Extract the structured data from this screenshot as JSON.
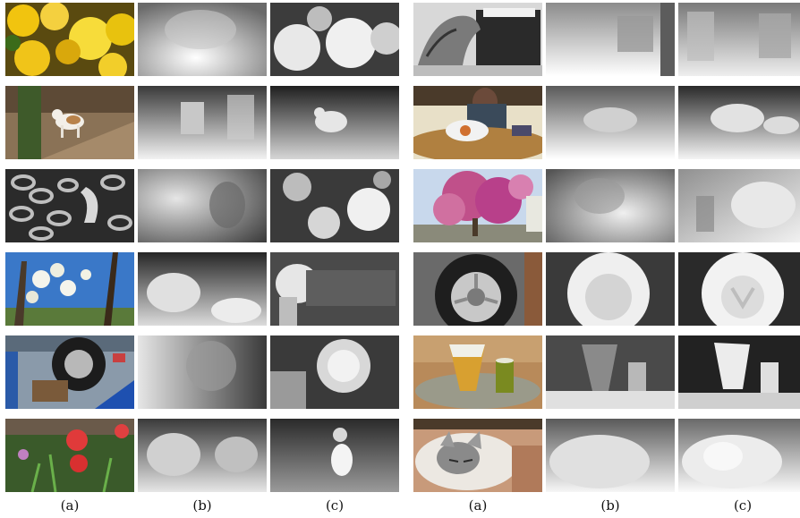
{
  "figure": {
    "column_labels": [
      "(a)",
      "(b)",
      "(c)",
      "(a)",
      "(b)",
      "(c)"
    ],
    "rows": [
      {
        "left": {
          "input": "yellow flowers",
          "tone_b": "mid",
          "tone_c": "bright"
        },
        "right": {
          "input": "dragon statue",
          "tone_b": "mid",
          "tone_c": "mid"
        }
      },
      {
        "left": {
          "input": "dog on path",
          "tone_b": "mid",
          "tone_c": "dark"
        },
        "right": {
          "input": "person at table",
          "tone_b": "bright",
          "tone_c": "bright"
        }
      },
      {
        "left": {
          "input": "metal chains",
          "tone_b": "mid",
          "tone_c": "mid"
        },
        "right": {
          "input": "blossoming tree",
          "tone_b": "mid",
          "tone_c": "bright"
        }
      },
      {
        "left": {
          "input": "white blossoms against sky",
          "tone_b": "dark",
          "tone_c": "dark"
        },
        "right": {
          "input": "car tire",
          "tone_b": "bright",
          "tone_c": "bright"
        }
      },
      {
        "left": {
          "input": "tire under vehicle",
          "tone_b": "mid",
          "tone_c": "mid"
        },
        "right": {
          "input": "fries and drink",
          "tone_b": "mid",
          "tone_c": "dark"
        }
      },
      {
        "left": {
          "input": "red poppies",
          "tone_b": "mid",
          "tone_c": "dark"
        },
        "right": {
          "input": "sleeping cat",
          "tone_b": "bright",
          "tone_c": "bright"
        }
      }
    ]
  }
}
